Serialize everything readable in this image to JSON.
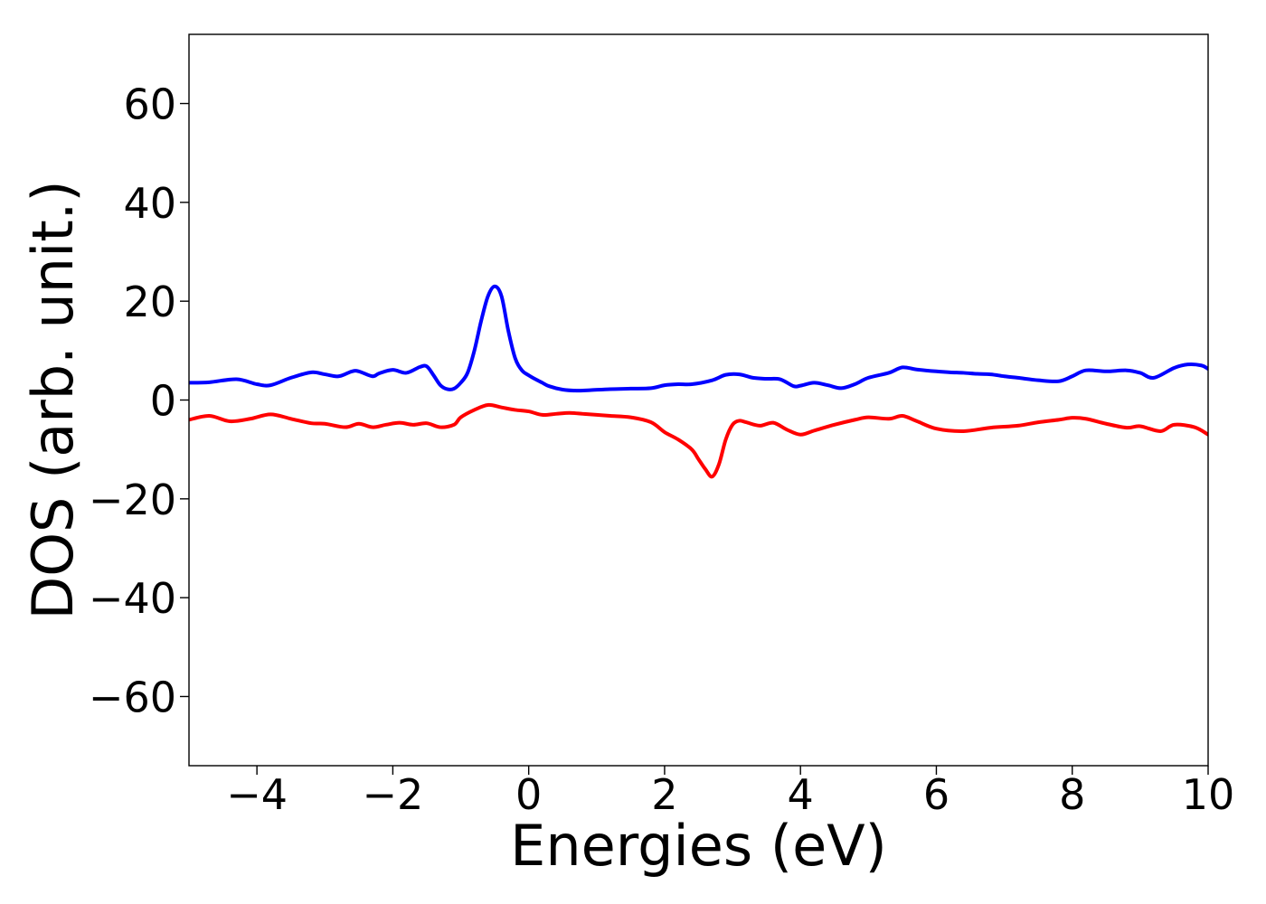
{
  "chart_data": {
    "type": "line",
    "title": "",
    "xlabel": "Energies (eV)",
    "ylabel": "DOS (arb. unit.)",
    "xlim": [
      -5,
      10
    ],
    "ylim": [
      -74,
      74
    ],
    "xticks": [
      -4,
      -2,
      0,
      2,
      4,
      6,
      8,
      10
    ],
    "yticks": [
      -60,
      -40,
      -20,
      0,
      20,
      40,
      60
    ],
    "xtick_labels": [
      "−4",
      "−2",
      "0",
      "2",
      "4",
      "6",
      "8",
      "10"
    ],
    "ytick_labels": [
      "−60",
      "−40",
      "−20",
      "0",
      "20",
      "40",
      "60"
    ],
    "grid": false,
    "legend": "none",
    "series": [
      {
        "color": "#0000ff",
        "x": [
          -5.0,
          -4.7,
          -4.3,
          -4.0,
          -3.8,
          -3.5,
          -3.2,
          -3.0,
          -2.8,
          -2.6,
          -2.5,
          -2.3,
          -2.2,
          -2.0,
          -1.8,
          -1.6,
          -1.5,
          -1.4,
          -1.3,
          -1.2,
          -1.1,
          -1.0,
          -0.9,
          -0.8,
          -0.7,
          -0.6,
          -0.5,
          -0.4,
          -0.3,
          -0.2,
          -0.1,
          0.0,
          0.1,
          0.2,
          0.3,
          0.5,
          0.7,
          0.9,
          1.2,
          1.5,
          1.8,
          2.0,
          2.2,
          2.4,
          2.7,
          2.9,
          3.1,
          3.3,
          3.5,
          3.7,
          3.9,
          4.0,
          4.2,
          4.4,
          4.6,
          4.8,
          5.0,
          5.3,
          5.5,
          5.7,
          6.0,
          6.2,
          6.4,
          6.6,
          6.8,
          7.0,
          7.2,
          7.5,
          7.8,
          8.0,
          8.2,
          8.5,
          8.8,
          9.0,
          9.2,
          9.5,
          9.7,
          9.9,
          10.0
        ],
        "y": [
          3.5,
          3.6,
          4.2,
          3.2,
          3.0,
          4.5,
          5.6,
          5.2,
          4.8,
          5.8,
          5.8,
          4.8,
          5.4,
          6.1,
          5.5,
          6.7,
          6.8,
          5.0,
          3.0,
          2.2,
          2.3,
          3.5,
          5.5,
          10,
          16,
          21,
          23,
          21,
          14,
          8.5,
          6.0,
          5.0,
          4.2,
          3.5,
          2.8,
          2.1,
          1.9,
          2.0,
          2.2,
          2.3,
          2.4,
          3.0,
          3.2,
          3.2,
          4.0,
          5.1,
          5.2,
          4.5,
          4.3,
          4.2,
          2.8,
          2.9,
          3.5,
          3.0,
          2.4,
          3.2,
          4.5,
          5.5,
          6.6,
          6.2,
          5.8,
          5.6,
          5.5,
          5.3,
          5.2,
          4.8,
          4.5,
          4.0,
          3.8,
          4.8,
          6.0,
          5.8,
          6.0,
          5.5,
          4.5,
          6.5,
          7.2,
          7.0,
          6.3
        ]
      },
      {
        "color": "#ff0000",
        "x": [
          -5.0,
          -4.7,
          -4.4,
          -4.1,
          -3.8,
          -3.5,
          -3.2,
          -3.0,
          -2.7,
          -2.5,
          -2.3,
          -2.1,
          -1.9,
          -1.7,
          -1.5,
          -1.3,
          -1.1,
          -1.0,
          -0.8,
          -0.6,
          -0.4,
          -0.2,
          0.0,
          0.2,
          0.4,
          0.6,
          0.8,
          1.0,
          1.2,
          1.5,
          1.8,
          2.0,
          2.2,
          2.4,
          2.5,
          2.6,
          2.7,
          2.8,
          2.9,
          3.0,
          3.1,
          3.2,
          3.4,
          3.6,
          3.8,
          4.0,
          4.2,
          4.5,
          4.8,
          5.0,
          5.3,
          5.5,
          5.7,
          6.0,
          6.4,
          6.8,
          7.2,
          7.5,
          7.8,
          8.0,
          8.2,
          8.5,
          8.8,
          9.0,
          9.3,
          9.5,
          9.8,
          10.0
        ],
        "y": [
          -4.0,
          -3.2,
          -4.3,
          -3.8,
          -2.9,
          -3.8,
          -4.7,
          -4.8,
          -5.5,
          -4.8,
          -5.5,
          -5.0,
          -4.6,
          -5.0,
          -4.7,
          -5.5,
          -5.0,
          -3.5,
          -2.0,
          -1.0,
          -1.5,
          -2.0,
          -2.3,
          -3.0,
          -2.8,
          -2.6,
          -2.8,
          -3.0,
          -3.2,
          -3.5,
          -4.5,
          -6.5,
          -8.0,
          -10.0,
          -12.0,
          -14.0,
          -15.5,
          -13.0,
          -8.0,
          -5.0,
          -4.2,
          -4.5,
          -5.2,
          -4.6,
          -6.0,
          -7.0,
          -6.2,
          -5.0,
          -4.0,
          -3.5,
          -3.8,
          -3.2,
          -4.2,
          -5.8,
          -6.3,
          -5.6,
          -5.2,
          -4.5,
          -4.0,
          -3.6,
          -3.8,
          -4.8,
          -5.6,
          -5.3,
          -6.3,
          -5.0,
          -5.5,
          -7.0
        ]
      }
    ]
  }
}
